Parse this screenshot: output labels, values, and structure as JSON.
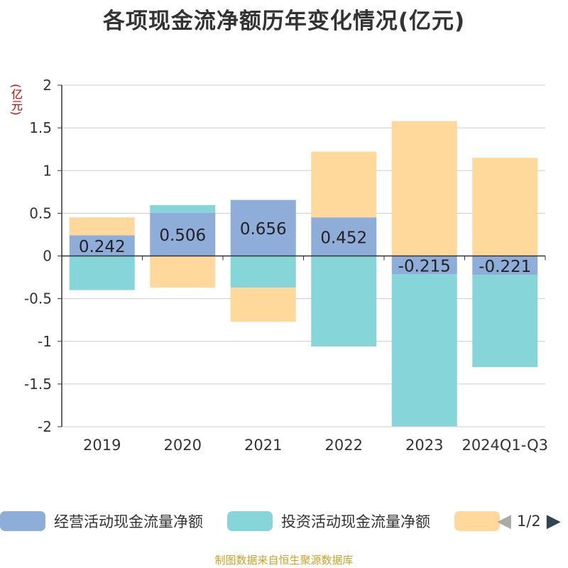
{
  "chart_data": {
    "type": "bar",
    "stacked": true,
    "title": "各项现金流净额历年变化情况(亿元)",
    "ylabel": "(亿元)",
    "xlabel": "",
    "ylim": [
      -2,
      2
    ],
    "yticks": [
      2,
      1.5,
      1,
      0.5,
      0,
      -0.5,
      -1,
      -1.5,
      -2
    ],
    "ytick_labels": [
      "2",
      "1.5",
      "1",
      "0.5",
      "0",
      "-0.5",
      "-1",
      "-1.5",
      "-2"
    ],
    "categories": [
      "2019",
      "2020",
      "2021",
      "2022",
      "2023",
      "2024Q1-Q3"
    ],
    "series": [
      {
        "name": "经营活动现金流量净额",
        "color": "#8eadd9",
        "values": [
          0.242,
          0.506,
          0.656,
          0.452,
          -0.215,
          -0.221
        ],
        "labels": [
          "0.242",
          "0.506",
          "0.656",
          "0.452",
          "-0.215",
          "-0.221"
        ]
      },
      {
        "name": "投资活动现金流量净额",
        "color": "#86d5d8",
        "values": [
          -0.4,
          0.09,
          -0.37,
          -1.06,
          -1.78,
          -1.08
        ]
      },
      {
        "name": "",
        "color": "#ffd99b",
        "values": [
          0.21,
          -0.37,
          -0.4,
          0.77,
          1.58,
          1.15
        ]
      }
    ],
    "grid": true,
    "legend_position": "bottom"
  },
  "legend": {
    "items": [
      {
        "label": "经营活动现金流量净额",
        "color": "#8eadd9"
      },
      {
        "label": "投资活动现金流量净额",
        "color": "#86d5d8"
      },
      {
        "label": "",
        "color": "#ffd99b"
      }
    ],
    "page_text": "1/2",
    "prev_color": "#aaaaaa",
    "next_color": "#2f4554"
  },
  "footer": "制图数据来自恒生聚源数据库"
}
